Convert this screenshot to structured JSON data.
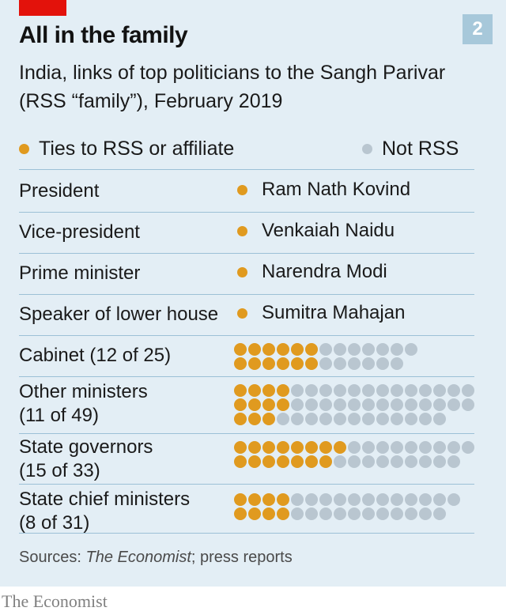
{
  "header": {
    "chart_number": "2",
    "title": "All in the family",
    "subtitle": "India, links of top politicians to the Sangh Parivar (RSS “family”), February 2019"
  },
  "legend": {
    "rss_label": "Ties to RSS or affiliate",
    "not_rss_label": "Not RSS"
  },
  "colors": {
    "rss": "#e09a1f",
    "not_rss": "#b9c6d0",
    "panel_background": "#e3eef5",
    "rule": "#9cc0d6",
    "accent_red": "#e3120b"
  },
  "footer": {
    "source_prefix": "Sources: ",
    "source_italic": "The Economist",
    "source_suffix": "; press reports",
    "brand": "The Economist"
  },
  "chart_data": {
    "type": "table",
    "posts": [
      {
        "position": "President",
        "person": "Ram Nath Kovind",
        "rss": true
      },
      {
        "position": "Vice-president",
        "person": "Venkaiah Naidu",
        "rss": true
      },
      {
        "position": "Prime minister",
        "person": "Narendra Modi",
        "rss": true
      },
      {
        "position": "Speaker of lower house",
        "person": "Sumitra Mahajan",
        "rss": true
      }
    ],
    "groups": [
      {
        "label_line1": "Cabinet (12 of 25)",
        "label_line2": "",
        "rss": 12,
        "total": 25
      },
      {
        "label_line1": "Other ministers",
        "label_line2": "(11 of 49)",
        "rss": 11,
        "total": 49
      },
      {
        "label_line1": "State governors",
        "label_line2": "(15 of 33)",
        "rss": 15,
        "total": 33
      },
      {
        "label_line1": "State chief ministers",
        "label_line2": "(8 of 31)",
        "rss": 8,
        "total": 31
      }
    ]
  }
}
